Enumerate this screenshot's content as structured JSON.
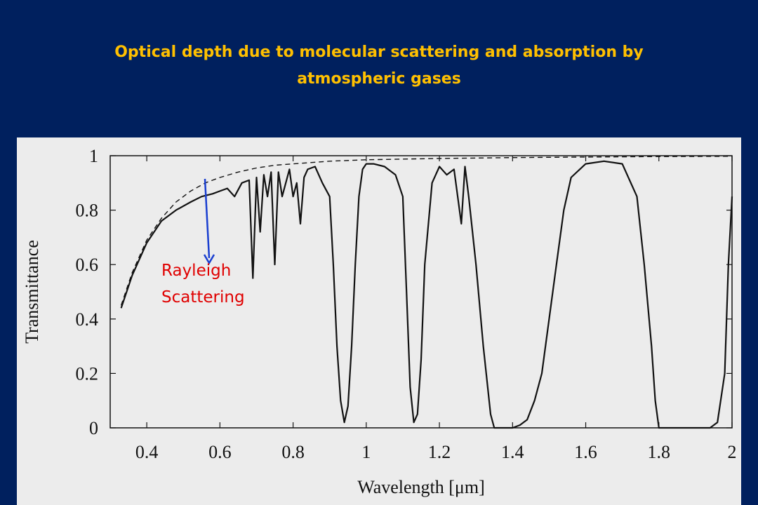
{
  "slide": {
    "title": "Optical depth due to molecular scattering and absorption by atmospheric gases"
  },
  "colors": {
    "background": "#00205e",
    "title": "#ffc000",
    "panel": "#ececec",
    "annotation_text": "#e00000",
    "annotation_arrow": "#1a3fd0"
  },
  "chart_data": {
    "type": "line",
    "title": "",
    "xlabel": "Wavelength [μm]",
    "ylabel": "Transmittance",
    "xlim": [
      0.3,
      2.0
    ],
    "ylim": [
      0,
      1
    ],
    "xticks": [
      "0.4",
      "0.6",
      "0.8",
      "1",
      "1.2",
      "1.4",
      "1.6",
      "1.8",
      "2"
    ],
    "xtick_values": [
      0.4,
      0.6,
      0.8,
      1.0,
      1.2,
      1.4,
      1.6,
      1.8,
      2.0
    ],
    "yticks": [
      "0",
      "0.2",
      "0.4",
      "0.6",
      "0.8",
      "1"
    ],
    "ytick_values": [
      0,
      0.2,
      0.4,
      0.6,
      0.8,
      1.0
    ],
    "grid": false,
    "series": [
      {
        "style": "dashed",
        "x": [
          0.33,
          0.36,
          0.4,
          0.44,
          0.48,
          0.52,
          0.56,
          0.6,
          0.65,
          0.7,
          0.75,
          0.8,
          0.9,
          1.0,
          1.2,
          1.4,
          1.6,
          1.8,
          2.0
        ],
        "y": [
          0.45,
          0.57,
          0.69,
          0.77,
          0.83,
          0.87,
          0.9,
          0.92,
          0.94,
          0.955,
          0.965,
          0.97,
          0.98,
          0.985,
          0.99,
          0.993,
          0.995,
          0.997,
          0.998
        ]
      },
      {
        "style": "solid",
        "x": [
          0.33,
          0.36,
          0.4,
          0.44,
          0.48,
          0.52,
          0.55,
          0.58,
          0.6,
          0.62,
          0.64,
          0.66,
          0.68,
          0.69,
          0.7,
          0.71,
          0.72,
          0.73,
          0.74,
          0.75,
          0.76,
          0.77,
          0.79,
          0.8,
          0.81,
          0.82,
          0.83,
          0.84,
          0.86,
          0.88,
          0.9,
          0.91,
          0.92,
          0.93,
          0.94,
          0.95,
          0.96,
          0.97,
          0.98,
          0.99,
          1.0,
          1.02,
          1.05,
          1.08,
          1.1,
          1.11,
          1.12,
          1.13,
          1.14,
          1.15,
          1.16,
          1.18,
          1.2,
          1.22,
          1.24,
          1.26,
          1.27,
          1.28,
          1.3,
          1.32,
          1.34,
          1.35,
          1.36,
          1.38,
          1.4,
          1.42,
          1.44,
          1.46,
          1.48,
          1.5,
          1.52,
          1.54,
          1.56,
          1.6,
          1.65,
          1.7,
          1.74,
          1.76,
          1.78,
          1.79,
          1.8,
          1.82,
          1.85,
          1.9,
          1.94,
          1.96,
          1.98,
          1.99,
          2.0
        ],
        "y": [
          0.44,
          0.56,
          0.68,
          0.76,
          0.8,
          0.83,
          0.85,
          0.86,
          0.87,
          0.88,
          0.85,
          0.9,
          0.91,
          0.55,
          0.92,
          0.72,
          0.93,
          0.85,
          0.94,
          0.6,
          0.94,
          0.85,
          0.95,
          0.85,
          0.9,
          0.75,
          0.92,
          0.95,
          0.96,
          0.9,
          0.85,
          0.6,
          0.3,
          0.1,
          0.02,
          0.08,
          0.3,
          0.6,
          0.85,
          0.95,
          0.97,
          0.97,
          0.96,
          0.93,
          0.85,
          0.5,
          0.15,
          0.02,
          0.05,
          0.25,
          0.6,
          0.9,
          0.96,
          0.93,
          0.95,
          0.75,
          0.96,
          0.85,
          0.6,
          0.3,
          0.05,
          0.0,
          0.0,
          0.0,
          0.0,
          0.01,
          0.03,
          0.1,
          0.2,
          0.4,
          0.6,
          0.8,
          0.92,
          0.97,
          0.98,
          0.97,
          0.85,
          0.6,
          0.3,
          0.1,
          0.0,
          0.0,
          0.0,
          0.0,
          0.0,
          0.02,
          0.2,
          0.6,
          0.85
        ]
      }
    ],
    "annotations": [
      {
        "text": "Rayleigh",
        "line": 1
      },
      {
        "text": "Scattering",
        "line": 2
      }
    ]
  }
}
